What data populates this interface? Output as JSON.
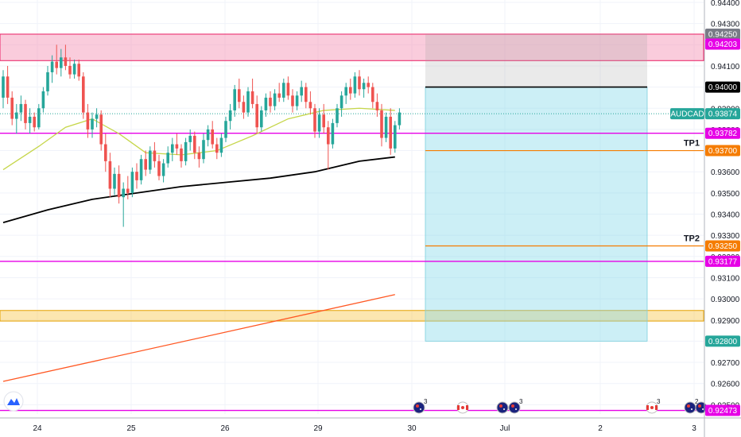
{
  "symbol": "AUDCAD",
  "chart_data": {
    "type": "candlestick",
    "symbol": "AUDCAD",
    "last_price": 0.93874,
    "y_axis": {
      "range": [
        0.9244,
        0.9446
      ],
      "ticks": [
        "0.94400",
        "0.94300",
        "0.94200",
        "0.94100",
        "0.94000",
        "0.93900",
        "0.93800",
        "0.93700",
        "0.93600",
        "0.93500",
        "0.93400",
        "0.93300",
        "0.93200",
        "0.93100",
        "0.93000",
        "0.92900",
        "0.92800",
        "0.92700",
        "0.92600",
        "0.92500"
      ]
    },
    "x_axis": {
      "ticks": [
        "24",
        "25",
        "26",
        "29",
        "30",
        "Jul",
        "2",
        "3"
      ]
    },
    "price_tags": [
      {
        "label": "0.94250",
        "value": 0.9425,
        "color": "#787b86"
      },
      {
        "label": "0.94203",
        "value": 0.94203,
        "color": "#e600e6"
      },
      {
        "label": "0.94000",
        "value": 0.94,
        "color": "#000000"
      },
      {
        "label": "AUDCAD",
        "value": 0.93874,
        "color": "#26a69a",
        "kind": "symbol"
      },
      {
        "label": "0.93874",
        "value": 0.93874,
        "color": "#26a69a"
      },
      {
        "label": "0.93782",
        "value": 0.93782,
        "color": "#e600e6"
      },
      {
        "label": "0.93700",
        "value": 0.937,
        "color": "#f57c00"
      },
      {
        "label": "0.93250",
        "value": 0.9325,
        "color": "#f57c00"
      },
      {
        "label": "0.93177",
        "value": 0.93177,
        "color": "#e600e6"
      },
      {
        "label": "0.92800",
        "value": 0.928,
        "color": "#26a69a"
      },
      {
        "label": "0.92473",
        "value": 0.92473,
        "color": "#e600e6"
      }
    ],
    "horizontal_lines": [
      {
        "value": 0.93782,
        "color": "#e600e6"
      },
      {
        "value": 0.93177,
        "color": "#e600e6"
      },
      {
        "value": 0.92473,
        "color": "#e600e6"
      }
    ],
    "zones": [
      {
        "from": 0.9425,
        "to": 0.94125,
        "color": "#f48fb1",
        "border": "#e91e63"
      },
      {
        "from": 0.92945,
        "to": 0.92895,
        "color": "#f9c74f",
        "border": "#e6a100"
      }
    ],
    "position": {
      "entry": 0.94,
      "stop": 0.9425,
      "targets": [
        {
          "label": "TP1",
          "value": 0.937
        },
        {
          "label": "TP2",
          "value": 0.9325
        }
      ],
      "final_target": 0.928
    },
    "events": [
      {
        "flag": "AU",
        "count": "3"
      },
      {
        "flag": "CA",
        "count": ""
      },
      {
        "flag": "AU",
        "count": ""
      },
      {
        "flag": "AU",
        "count": "3"
      },
      {
        "flag": "CA",
        "count": "3"
      },
      {
        "flag": "AU",
        "count": "2"
      },
      {
        "flag": "AU",
        "count": ""
      }
    ],
    "candles": [
      [
        0.9395,
        0.9408,
        0.939,
        0.9405
      ],
      [
        0.9405,
        0.941,
        0.9392,
        0.9395
      ],
      [
        0.9395,
        0.9398,
        0.9382,
        0.9385
      ],
      [
        0.9385,
        0.9392,
        0.9378,
        0.9388
      ],
      [
        0.9388,
        0.9396,
        0.9384,
        0.9392
      ],
      [
        0.9392,
        0.9394,
        0.938,
        0.9383
      ],
      [
        0.9383,
        0.939,
        0.9378,
        0.9386
      ],
      [
        0.9386,
        0.9388,
        0.9379,
        0.9381
      ],
      [
        0.9381,
        0.9392,
        0.938,
        0.939
      ],
      [
        0.939,
        0.94,
        0.9388,
        0.9398
      ],
      [
        0.9398,
        0.941,
        0.9396,
        0.9407
      ],
      [
        0.9407,
        0.9415,
        0.9402,
        0.9412
      ],
      [
        0.9412,
        0.942,
        0.9406,
        0.9409
      ],
      [
        0.9409,
        0.9418,
        0.9405,
        0.9414
      ],
      [
        0.9414,
        0.942,
        0.9408,
        0.941
      ],
      [
        0.941,
        0.9414,
        0.9404,
        0.9406
      ],
      [
        0.9406,
        0.9413,
        0.9404,
        0.9411
      ],
      [
        0.9411,
        0.9413,
        0.9403,
        0.9405
      ],
      [
        0.9405,
        0.9407,
        0.9385,
        0.9388
      ],
      [
        0.9388,
        0.9392,
        0.9376,
        0.938
      ],
      [
        0.938,
        0.9388,
        0.9376,
        0.9385
      ],
      [
        0.9385,
        0.939,
        0.9381,
        0.9387
      ],
      [
        0.9387,
        0.9389,
        0.937,
        0.9373
      ],
      [
        0.9373,
        0.9378,
        0.936,
        0.9365
      ],
      [
        0.9365,
        0.9369,
        0.9348,
        0.9352
      ],
      [
        0.9352,
        0.9362,
        0.9349,
        0.9359
      ],
      [
        0.9359,
        0.9363,
        0.9345,
        0.9348
      ],
      [
        0.9348,
        0.9355,
        0.9334,
        0.9352
      ],
      [
        0.9352,
        0.9358,
        0.9347,
        0.935
      ],
      [
        0.935,
        0.9362,
        0.9348,
        0.936
      ],
      [
        0.936,
        0.9364,
        0.9352,
        0.9356
      ],
      [
        0.9356,
        0.9368,
        0.9354,
        0.9366
      ],
      [
        0.9366,
        0.937,
        0.9358,
        0.9361
      ],
      [
        0.9361,
        0.9372,
        0.9359,
        0.937
      ],
      [
        0.937,
        0.9374,
        0.9362,
        0.9365
      ],
      [
        0.9365,
        0.9368,
        0.9356,
        0.9358
      ],
      [
        0.9358,
        0.9366,
        0.9355,
        0.9364
      ],
      [
        0.9364,
        0.9372,
        0.9362,
        0.9369
      ],
      [
        0.9369,
        0.9376,
        0.9365,
        0.9373
      ],
      [
        0.9373,
        0.9378,
        0.9368,
        0.9371
      ],
      [
        0.9371,
        0.9373,
        0.9362,
        0.9365
      ],
      [
        0.9365,
        0.9376,
        0.9363,
        0.9374
      ],
      [
        0.9374,
        0.938,
        0.937,
        0.9377
      ],
      [
        0.9377,
        0.9379,
        0.9366,
        0.9369
      ],
      [
        0.9369,
        0.9372,
        0.9362,
        0.9366
      ],
      [
        0.9366,
        0.9378,
        0.9364,
        0.9375
      ],
      [
        0.9375,
        0.9382,
        0.9372,
        0.938
      ],
      [
        0.938,
        0.9384,
        0.9371,
        0.9373
      ],
      [
        0.9373,
        0.9376,
        0.9366,
        0.9369
      ],
      [
        0.9369,
        0.9378,
        0.9367,
        0.9376
      ],
      [
        0.9376,
        0.9386,
        0.9374,
        0.9384
      ],
      [
        0.9384,
        0.9392,
        0.938,
        0.9389
      ],
      [
        0.9389,
        0.9401,
        0.9386,
        0.9399
      ],
      [
        0.9399,
        0.9404,
        0.939,
        0.9393
      ],
      [
        0.9393,
        0.9396,
        0.9385,
        0.9388
      ],
      [
        0.9388,
        0.94,
        0.9386,
        0.9398
      ],
      [
        0.9398,
        0.9404,
        0.939,
        0.9392
      ],
      [
        0.9392,
        0.9396,
        0.9378,
        0.9381
      ],
      [
        0.9381,
        0.9391,
        0.9379,
        0.9389
      ],
      [
        0.9389,
        0.9397,
        0.9386,
        0.9395
      ],
      [
        0.9395,
        0.9398,
        0.9388,
        0.9391
      ],
      [
        0.9391,
        0.9399,
        0.9389,
        0.9397
      ],
      [
        0.9397,
        0.9402,
        0.9393,
        0.9395
      ],
      [
        0.9395,
        0.9404,
        0.9393,
        0.9402
      ],
      [
        0.9402,
        0.9405,
        0.9394,
        0.9396
      ],
      [
        0.9396,
        0.9399,
        0.9388,
        0.9391
      ],
      [
        0.9391,
        0.9398,
        0.9389,
        0.9396
      ],
      [
        0.9396,
        0.9403,
        0.9393,
        0.94
      ],
      [
        0.94,
        0.9402,
        0.939,
        0.9393
      ],
      [
        0.9393,
        0.9398,
        0.9387,
        0.939
      ],
      [
        0.939,
        0.9392,
        0.9376,
        0.9379
      ],
      [
        0.9379,
        0.939,
        0.9376,
        0.9387
      ],
      [
        0.9387,
        0.9392,
        0.9378,
        0.9381
      ],
      [
        0.9381,
        0.9384,
        0.9361,
        0.9373
      ],
      [
        0.9373,
        0.9385,
        0.9371,
        0.9383
      ],
      [
        0.9383,
        0.9392,
        0.9381,
        0.939
      ],
      [
        0.939,
        0.9398,
        0.9386,
        0.9396
      ],
      [
        0.9396,
        0.9402,
        0.9392,
        0.94
      ],
      [
        0.94,
        0.9404,
        0.9394,
        0.9397
      ],
      [
        0.9397,
        0.9407,
        0.9395,
        0.9405
      ],
      [
        0.9405,
        0.9408,
        0.9396,
        0.9399
      ],
      [
        0.9399,
        0.9404,
        0.9395,
        0.9402
      ],
      [
        0.9402,
        0.9405,
        0.9397,
        0.94
      ],
      [
        0.94,
        0.9402,
        0.939,
        0.9393
      ],
      [
        0.9393,
        0.9397,
        0.9386,
        0.9389
      ],
      [
        0.9389,
        0.9392,
        0.9372,
        0.9376
      ],
      [
        0.9376,
        0.9388,
        0.9374,
        0.9386
      ],
      [
        0.9386,
        0.939,
        0.9368,
        0.9371
      ],
      [
        0.9371,
        0.9384,
        0.9369,
        0.9382
      ],
      [
        0.9382,
        0.939,
        0.938,
        0.9388
      ]
    ],
    "moving_averages": [
      {
        "color": "#c6d64a",
        "points": [
          [
            0,
            0.9361
          ],
          [
            8,
            0.9372
          ],
          [
            14,
            0.9381
          ],
          [
            20,
            0.9385
          ],
          [
            26,
            0.9378
          ],
          [
            32,
            0.9369
          ],
          [
            40,
            0.9368
          ],
          [
            48,
            0.937
          ],
          [
            56,
            0.9377
          ],
          [
            64,
            0.9385
          ],
          [
            72,
            0.9389
          ],
          [
            80,
            0.939
          ],
          [
            88,
            0.9389
          ]
        ]
      },
      {
        "color": "#000000",
        "points": [
          [
            0,
            0.9336
          ],
          [
            10,
            0.9342
          ],
          [
            20,
            0.9347
          ],
          [
            30,
            0.935
          ],
          [
            40,
            0.9353
          ],
          [
            50,
            0.9355
          ],
          [
            60,
            0.9357
          ],
          [
            70,
            0.936
          ],
          [
            80,
            0.9365
          ],
          [
            88,
            0.9367
          ]
        ]
      },
      {
        "color": "#ff5722",
        "points": [
          [
            0,
            0.9261
          ],
          [
            88,
            0.9302
          ]
        ]
      }
    ]
  }
}
